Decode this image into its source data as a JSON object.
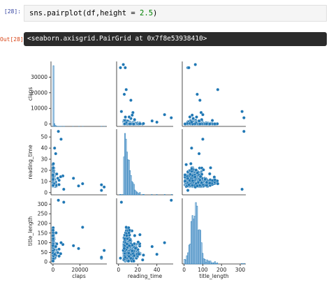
{
  "notebook": {
    "input_prompt": "[28]:",
    "code": {
      "call": "sns.pairplot(df,height = ",
      "number": "2.5",
      "close": ")"
    },
    "output_prompt": "Out[28]:",
    "output_text": "<seaborn.axisgrid.PairGrid at 0x7f8e53938410>"
  },
  "chart_data": {
    "type": "scatter",
    "kind": "pairplot",
    "variables": [
      "claps",
      "reading_time",
      "title_length"
    ],
    "point_color": "#1f77b4",
    "axes": {
      "claps": {
        "label": "claps",
        "range": [
          -1500,
          40000
        ],
        "ticks": [
          0,
          20000
        ],
        "y_ticks": [
          0,
          10000,
          20000,
          30000
        ]
      },
      "reading_time": {
        "label": "reading_time",
        "range": [
          -2,
          57
        ],
        "ticks": [
          0,
          20,
          40
        ],
        "y_ticks": [
          0,
          10,
          20,
          30,
          40,
          50
        ]
      },
      "title_length": {
        "label": "title_length",
        "range": [
          -10,
          330
        ],
        "ticks": [
          0,
          100,
          200,
          300
        ],
        "y_ticks": [
          0,
          50,
          100,
          150,
          200,
          250,
          300
        ]
      }
    },
    "grid": false,
    "legend": "none"
  }
}
